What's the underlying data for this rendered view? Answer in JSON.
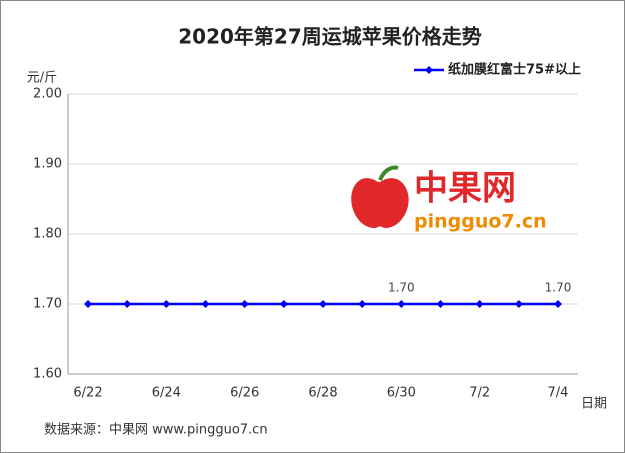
{
  "chart_data": {
    "type": "line",
    "title": "2020年第27周运城苹果价格走势",
    "y_label": "元/斤",
    "x_label": "日期",
    "categories": [
      "6/22",
      null,
      "6/24",
      null,
      "6/26",
      null,
      "6/28",
      null,
      "6/30",
      null,
      "7/2",
      null,
      "7/4"
    ],
    "series": [
      {
        "name": "纸加膜红富士75#以上",
        "color": "#0000ff",
        "values": [
          1.7,
          1.7,
          1.7,
          1.7,
          1.7,
          1.7,
          1.7,
          1.7,
          1.7,
          1.7,
          1.7,
          1.7,
          1.7
        ],
        "value_labels": [
          null,
          null,
          null,
          null,
          null,
          null,
          null,
          null,
          "1.70",
          null,
          null,
          null,
          "1.70"
        ]
      }
    ],
    "ylim": [
      1.6,
      2.0
    ],
    "yticks": [
      {
        "value": 1.6,
        "label": "1.60"
      },
      {
        "value": 1.7,
        "label": "1.70"
      },
      {
        "value": 1.8,
        "label": "1.80"
      },
      {
        "value": 1.9,
        "label": "1.90"
      },
      {
        "value": 2.0,
        "label": "2.00"
      }
    ],
    "grid": true,
    "legend": "top-right",
    "watermark": {
      "name": "中果网",
      "url": "pingguo7.cn"
    },
    "source": "数据来源：中果网 www.pingguo7.cn"
  }
}
